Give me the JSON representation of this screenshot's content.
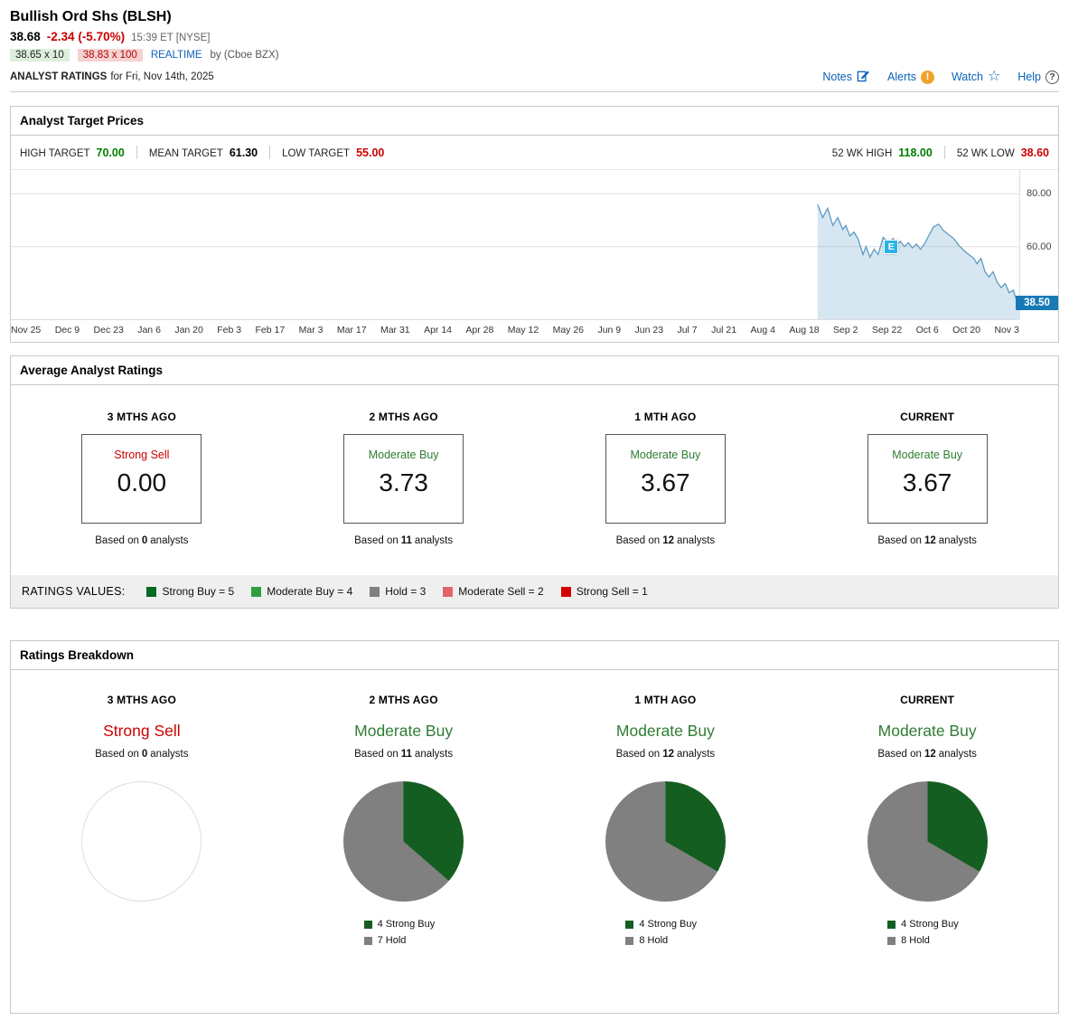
{
  "header": {
    "title": "Bullish Ord Shs (BLSH)",
    "price": "38.68",
    "change": "-2.34 (-5.70%)",
    "timestamp": "15:39 ET [NYSE]",
    "bid": "38.65 x 10",
    "ask": "38.83 x 100",
    "realtime": "REALTIME",
    "realtime_source": "by (Cboe BZX)",
    "page_label": "ANALYST RATINGS",
    "page_date": "for Fri, Nov 14th, 2025",
    "links": {
      "notes": "Notes",
      "alerts": "Alerts",
      "watch": "Watch",
      "help": "Help"
    },
    "icons": {
      "alerts_glyph": "!",
      "watch_glyph": "☆",
      "help_glyph": "?"
    }
  },
  "target_prices": {
    "title": "Analyst Target Prices",
    "high_label": "HIGH TARGET",
    "high_value": "70.00",
    "mean_label": "MEAN TARGET",
    "mean_value": "61.30",
    "low_label": "LOW TARGET",
    "low_value": "55.00",
    "wk_high_label": "52 WK HIGH",
    "wk_high_value": "118.00",
    "wk_low_label": "52 WK LOW",
    "wk_low_value": "38.60"
  },
  "chart_data": {
    "type": "area",
    "title": "BLSH 1-year price chart",
    "x_labels": [
      "Nov 25",
      "Dec 9",
      "Dec 23",
      "Jan 6",
      "Jan 20",
      "Feb 3",
      "Feb 17",
      "Mar 3",
      "Mar 17",
      "Mar 31",
      "Apr 14",
      "Apr 28",
      "May 12",
      "May 26",
      "Jun 9",
      "Jun 23",
      "Jul 7",
      "Jul 21",
      "Aug 4",
      "Aug 18",
      "Sep 2",
      "Sep 22",
      "Oct 6",
      "Oct 20",
      "Nov 3"
    ],
    "y_ticks": [
      {
        "label": "80.00",
        "value": 80
      },
      {
        "label": "60.00",
        "value": 60
      }
    ],
    "ylim": [
      32.5,
      89
    ],
    "grid": true,
    "line_color": "#5d9bc4",
    "fill_color": "rgba(140,185,215,0.35)",
    "last_price": 38.5,
    "last_price_label": "38.50",
    "last_price_badge_color": "#1879b6",
    "event_marker": {
      "label": "E",
      "x": 0.873,
      "price": 60,
      "color": "#2bb3e8"
    },
    "series": [
      {
        "name": "price",
        "points": [
          [
            0.8,
            76
          ],
          [
            0.805,
            71
          ],
          [
            0.81,
            74.5
          ],
          [
            0.815,
            68
          ],
          [
            0.82,
            71
          ],
          [
            0.825,
            66.5
          ],
          [
            0.828,
            68
          ],
          [
            0.832,
            64
          ],
          [
            0.836,
            65.5
          ],
          [
            0.84,
            63
          ],
          [
            0.845,
            57
          ],
          [
            0.848,
            60
          ],
          [
            0.852,
            56
          ],
          [
            0.856,
            59
          ],
          [
            0.86,
            57
          ],
          [
            0.865,
            63.5
          ],
          [
            0.87,
            61.5
          ],
          [
            0.875,
            63
          ],
          [
            0.878,
            60.5
          ],
          [
            0.882,
            62
          ],
          [
            0.886,
            60
          ],
          [
            0.89,
            61.5
          ],
          [
            0.894,
            59.5
          ],
          [
            0.898,
            61
          ],
          [
            0.902,
            59
          ],
          [
            0.906,
            61
          ],
          [
            0.91,
            64
          ],
          [
            0.915,
            67.5
          ],
          [
            0.92,
            68.5
          ],
          [
            0.925,
            66
          ],
          [
            0.93,
            64.5
          ],
          [
            0.935,
            63
          ],
          [
            0.94,
            60.5
          ],
          [
            0.945,
            58.5
          ],
          [
            0.95,
            57
          ],
          [
            0.955,
            55.5
          ],
          [
            0.958,
            53.5
          ],
          [
            0.962,
            55.5
          ],
          [
            0.966,
            50.5
          ],
          [
            0.97,
            48.5
          ],
          [
            0.974,
            50.5
          ],
          [
            0.978,
            46.5
          ],
          [
            0.982,
            44.5
          ],
          [
            0.986,
            46
          ],
          [
            0.99,
            42.5
          ],
          [
            0.994,
            43.5
          ],
          [
            0.997,
            40
          ],
          [
            1.0,
            38.5
          ]
        ]
      }
    ]
  },
  "average_ratings": {
    "title": "Average Analyst Ratings",
    "columns": [
      {
        "period": "3 MTHS AGO",
        "rating": "Strong Sell",
        "rating_color": "#cc0000",
        "value": "0.00",
        "based_prefix": "Based on",
        "analyst_count": "0",
        "based_suffix": "analysts"
      },
      {
        "period": "2 MTHS AGO",
        "rating": "Moderate Buy",
        "rating_color": "#2e7d32",
        "value": "3.73",
        "based_prefix": "Based on",
        "analyst_count": "11",
        "based_suffix": "analysts"
      },
      {
        "period": "1 MTH AGO",
        "rating": "Moderate Buy",
        "rating_color": "#2e7d32",
        "value": "3.67",
        "based_prefix": "Based on",
        "analyst_count": "12",
        "based_suffix": "analysts"
      },
      {
        "period": "CURRENT",
        "rating": "Moderate Buy",
        "rating_color": "#2e7d32",
        "value": "3.67",
        "based_prefix": "Based on",
        "analyst_count": "12",
        "based_suffix": "analysts"
      }
    ],
    "legend_title": "RATINGS VALUES:",
    "legend": [
      {
        "label": "Strong Buy = 5",
        "color": "#006b24"
      },
      {
        "label": "Moderate Buy = 4",
        "color": "#2e9e44"
      },
      {
        "label": "Hold = 3",
        "color": "#808080"
      },
      {
        "label": "Moderate Sell = 2",
        "color": "#e06666"
      },
      {
        "label": "Strong Sell = 1",
        "color": "#d40000"
      }
    ]
  },
  "ratings_breakdown": {
    "title": "Ratings Breakdown",
    "columns": [
      {
        "period": "3 MTHS AGO",
        "rating": "Strong Sell",
        "rating_color": "#cc0000",
        "based_prefix": "Based on",
        "analyst_count": "0",
        "based_suffix": "analysts",
        "slices": []
      },
      {
        "period": "2 MTHS AGO",
        "rating": "Moderate Buy",
        "rating_color": "#2e7d32",
        "based_prefix": "Based on",
        "analyst_count": "11",
        "based_suffix": "analysts",
        "slices": [
          {
            "label": "4 Strong Buy",
            "value": 4,
            "color": "#155e21"
          },
          {
            "label": "7 Hold",
            "value": 7,
            "color": "#808080"
          }
        ]
      },
      {
        "period": "1 MTH AGO",
        "rating": "Moderate Buy",
        "rating_color": "#2e7d32",
        "based_prefix": "Based on",
        "analyst_count": "12",
        "based_suffix": "analysts",
        "slices": [
          {
            "label": "4 Strong Buy",
            "value": 4,
            "color": "#155e21"
          },
          {
            "label": "8 Hold",
            "value": 8,
            "color": "#808080"
          }
        ]
      },
      {
        "period": "CURRENT",
        "rating": "Moderate Buy",
        "rating_color": "#2e7d32",
        "based_prefix": "Based on",
        "analyst_count": "12",
        "based_suffix": "analysts",
        "slices": [
          {
            "label": "4 Strong Buy",
            "value": 4,
            "color": "#155e21"
          },
          {
            "label": "8 Hold",
            "value": 8,
            "color": "#808080"
          }
        ]
      }
    ]
  }
}
